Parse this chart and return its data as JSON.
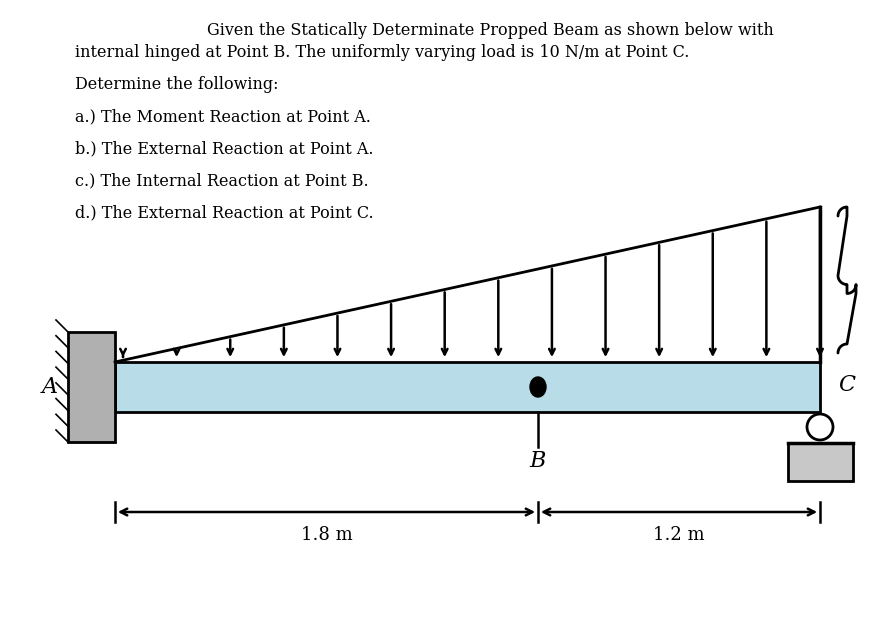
{
  "text_line1": "Given the Statically Determinate Propped Beam as shown below with",
  "text_line2": "internal hinged at Point B. The uniformly varying load is 10 N/m at Point C.",
  "text_line3": "Determine the following:",
  "text_line4": "a.) The Moment Reaction at Point A.",
  "text_line5": "b.) The External Reaction at Point A.",
  "text_line6": "c.) The Internal Reaction at Point B.",
  "text_line7": "d.) The External Reaction at Point C.",
  "beam_color": "#b8dde8",
  "wall_color": "#b0b0b0",
  "support_color": "#c8c8c8",
  "label_A": "A",
  "label_B": "B",
  "label_C": "C",
  "dim1": "1.8 m",
  "dim2": "1.2 m"
}
